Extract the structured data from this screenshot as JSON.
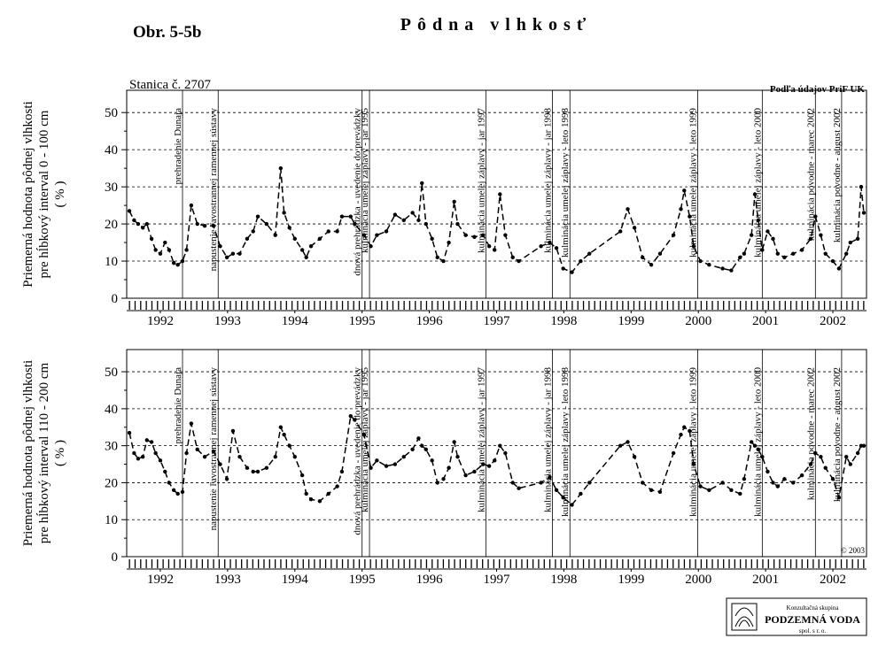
{
  "title": "Obr. 5-5b",
  "heading": "Pôdna vlhkosť",
  "station": "Stanica č. 2707",
  "source": "Podľa údajov PriF UK",
  "copyright": "© 2003",
  "logo": {
    "line1": "Konzultačná skupina",
    "line2": "PODZEMNÁ VODA",
    "line3": "spol. s r. o."
  },
  "chart_data": [
    {
      "type": "line",
      "y_label": [
        "Priemerná hodnota pôdnej vlhkosti",
        "pre hĺbkový interval 0 - 100 cm",
        "( % )"
      ],
      "xlim": [
        1992,
        2003
      ],
      "ylim": [
        0,
        56
      ],
      "yticks": [
        0,
        10,
        20,
        30,
        40,
        50
      ],
      "grid": true,
      "color": "#000000",
      "xticks": [
        {
          "value": 1992.5,
          "label": "1992"
        },
        {
          "value": 1993.5,
          "label": "1993"
        },
        {
          "value": 1994.5,
          "label": "1994"
        },
        {
          "value": 1995.5,
          "label": "1995"
        },
        {
          "value": 1996.5,
          "label": "1996"
        },
        {
          "value": 1997.5,
          "label": "1997"
        },
        {
          "value": 1998.5,
          "label": "1998"
        },
        {
          "value": 1999.5,
          "label": "1999"
        },
        {
          "value": 2000.5,
          "label": "2000"
        },
        {
          "value": 2001.5,
          "label": "2001"
        },
        {
          "value": 2002.5,
          "label": "2002"
        }
      ],
      "events": [
        {
          "x": 1992.83,
          "label": "prehradenie Dunaja"
        },
        {
          "x": 1993.36,
          "label": "napustenie ľavostrannej ramennej sústavy"
        },
        {
          "x": 1995.5,
          "label": "dnová prehrádzka - uvedenie do prevádzky"
        },
        {
          "x": 1995.61,
          "label": "kulminácia umelej záplavy - jar 1995"
        },
        {
          "x": 1997.34,
          "label": "kulminácia umelej záplavy - jar 1997"
        },
        {
          "x": 1998.33,
          "label": "kulminácia umelej záplavy - jar 1998"
        },
        {
          "x": 1998.59,
          "label": "kulminácia umelej záplavy - leto 1998"
        },
        {
          "x": 2000.49,
          "label": "kulminácia umelej záplavy - leto 1999"
        },
        {
          "x": 2001.45,
          "label": "kulminácia umelej záplavy - leto 2000"
        },
        {
          "x": 2002.24,
          "label": "kulminácia povodne - marec 2002"
        },
        {
          "x": 2002.63,
          "label": "kulminácia povodne - august 2002"
        }
      ],
      "x": [
        1992.04,
        1992.11,
        1992.17,
        1992.24,
        1992.3,
        1992.37,
        1992.43,
        1992.5,
        1992.57,
        1992.63,
        1992.7,
        1992.76,
        1992.83,
        1992.89,
        1992.96,
        1993.05,
        1993.16,
        1993.29,
        1993.39,
        1993.49,
        1993.58,
        1993.68,
        1993.79,
        1993.88,
        1993.95,
        1994.08,
        1994.21,
        1994.29,
        1994.34,
        1994.42,
        1994.5,
        1994.61,
        1994.67,
        1994.74,
        1994.87,
        1995.0,
        1995.13,
        1995.2,
        1995.33,
        1995.39,
        1995.53,
        1995.63,
        1995.72,
        1995.86,
        1995.99,
        1996.12,
        1996.25,
        1996.34,
        1996.39,
        1996.45,
        1996.54,
        1996.62,
        1996.71,
        1996.79,
        1996.87,
        1996.92,
        1997.04,
        1997.17,
        1997.3,
        1997.39,
        1997.47,
        1997.55,
        1997.63,
        1997.74,
        1997.83,
        1998.16,
        1998.29,
        1998.39,
        1998.49,
        1998.62,
        1998.75,
        1998.88,
        1999.34,
        1999.45,
        1999.55,
        1999.67,
        1999.8,
        1999.93,
        2000.13,
        2000.24,
        2000.29,
        2000.37,
        2000.43,
        2000.53,
        2000.66,
        2000.86,
        2000.99,
        2001.12,
        2001.18,
        2001.29,
        2001.34,
        2001.39,
        2001.45,
        2001.53,
        2001.61,
        2001.68,
        2001.78,
        2001.91,
        2002.04,
        2002.17,
        2002.24,
        2002.32,
        2002.39,
        2002.5,
        2002.59,
        2002.7,
        2002.76,
        2002.87,
        2002.92,
        2002.96
      ],
      "values": [
        23.5,
        21,
        20,
        19,
        20,
        16,
        13,
        12,
        15,
        13,
        9.5,
        9,
        10,
        13,
        25,
        20,
        19.5,
        19.5,
        14,
        11,
        12,
        12,
        16,
        18,
        22,
        20,
        17,
        35,
        23,
        19,
        16,
        13,
        11,
        14,
        16,
        18,
        18,
        22,
        22,
        20,
        17,
        14,
        17,
        18,
        22.5,
        21,
        23,
        21,
        31,
        20,
        16,
        11,
        10,
        15,
        26,
        20,
        17,
        16.5,
        17,
        14,
        13,
        28,
        17,
        11,
        10,
        14,
        15,
        13.5,
        8,
        7,
        10,
        12,
        18,
        24,
        19,
        11,
        9,
        12,
        17,
        24,
        29,
        22,
        14,
        10,
        9,
        8,
        7.5,
        11,
        12,
        17,
        28,
        21,
        13,
        18,
        16,
        12,
        11,
        12,
        13,
        16,
        22,
        17,
        12,
        10,
        8,
        12,
        15,
        16,
        30,
        23
      ]
    },
    {
      "type": "line",
      "y_label": [
        "Priemerná hodnota pôdnej vlhkosti",
        "pre hĺbkový interval 110 - 200 cm",
        "( % )"
      ],
      "xlim": [
        1992,
        2003
      ],
      "ylim": [
        0,
        56
      ],
      "yticks": [
        0,
        10,
        20,
        30,
        40,
        50
      ],
      "grid": true,
      "color": "#000000",
      "xticks": [
        {
          "value": 1992.5,
          "label": "1992"
        },
        {
          "value": 1993.5,
          "label": "1993"
        },
        {
          "value": 1994.5,
          "label": "1994"
        },
        {
          "value": 1995.5,
          "label": "1995"
        },
        {
          "value": 1996.5,
          "label": "1996"
        },
        {
          "value": 1997.5,
          "label": "1997"
        },
        {
          "value": 1998.5,
          "label": "1998"
        },
        {
          "value": 1999.5,
          "label": "1999"
        },
        {
          "value": 2000.5,
          "label": "2000"
        },
        {
          "value": 2001.5,
          "label": "2001"
        },
        {
          "value": 2002.5,
          "label": "2002"
        }
      ],
      "events": [
        {
          "x": 1992.83,
          "label": "prehradenie Dunaja"
        },
        {
          "x": 1993.36,
          "label": "napustenie ľavostrannej ramennej sústavy"
        },
        {
          "x": 1995.5,
          "label": "dnová prehrádzka - uvedenie do prevádzky"
        },
        {
          "x": 1995.61,
          "label": "kulminácia umelej záplavy - jar 1995"
        },
        {
          "x": 1997.34,
          "label": "kulminácia umelej záplavy - jar 1997"
        },
        {
          "x": 1998.33,
          "label": "kulminácia umelej záplavy - jar 1998"
        },
        {
          "x": 1998.59,
          "label": "kulminácia umelej záplavy - leto 1998"
        },
        {
          "x": 2000.49,
          "label": "kulminácia umelej záplavy - leto 1999"
        },
        {
          "x": 2001.45,
          "label": "kulminácia umelej záplavy - leto 2000"
        },
        {
          "x": 2002.24,
          "label": "kulminácia povodne - marec 2002"
        },
        {
          "x": 2002.63,
          "label": "kulminácia povodne - august 2002"
        }
      ],
      "x": [
        1992.04,
        1992.11,
        1992.17,
        1992.24,
        1992.3,
        1992.37,
        1992.43,
        1992.5,
        1992.57,
        1992.63,
        1992.7,
        1992.76,
        1992.83,
        1992.89,
        1992.96,
        1993.05,
        1993.16,
        1993.29,
        1993.39,
        1993.49,
        1993.58,
        1993.68,
        1993.79,
        1993.88,
        1993.95,
        1994.08,
        1994.21,
        1994.29,
        1994.34,
        1994.42,
        1994.5,
        1994.61,
        1994.67,
        1994.74,
        1994.87,
        1995.0,
        1995.13,
        1995.2,
        1995.33,
        1995.39,
        1995.53,
        1995.63,
        1995.72,
        1995.86,
        1995.99,
        1996.12,
        1996.25,
        1996.34,
        1996.39,
        1996.45,
        1996.54,
        1996.62,
        1996.71,
        1996.79,
        1996.87,
        1996.92,
        1997.04,
        1997.17,
        1997.3,
        1997.39,
        1997.47,
        1997.55,
        1997.63,
        1997.74,
        1997.83,
        1998.16,
        1998.29,
        1998.39,
        1998.49,
        1998.62,
        1998.75,
        1998.88,
        1999.34,
        1999.45,
        1999.55,
        1999.67,
        1999.8,
        1999.93,
        2000.13,
        2000.24,
        2000.29,
        2000.37,
        2000.43,
        2000.53,
        2000.66,
        2000.86,
        2000.99,
        2001.12,
        2001.18,
        2001.29,
        2001.34,
        2001.39,
        2001.45,
        2001.53,
        2001.61,
        2001.68,
        2001.78,
        2001.91,
        2002.04,
        2002.17,
        2002.24,
        2002.32,
        2002.39,
        2002.5,
        2002.59,
        2002.7,
        2002.76,
        2002.87,
        2002.92,
        2002.96
      ],
      "values": [
        33.5,
        28,
        26.5,
        27,
        31.5,
        31,
        28,
        26,
        23,
        20,
        18,
        17,
        17.5,
        28,
        36,
        29,
        27,
        28.5,
        25,
        21,
        34,
        27,
        24,
        23,
        23,
        24,
        27,
        35,
        33,
        30,
        27,
        22,
        17,
        15.5,
        15,
        17,
        19,
        23,
        38,
        37,
        33,
        24,
        26,
        24.5,
        25,
        27,
        29,
        32,
        30,
        29,
        26,
        20,
        21,
        24,
        31,
        27,
        22,
        23,
        25,
        24.5,
        26,
        30,
        28,
        20,
        18.5,
        20,
        21.5,
        18,
        16,
        14,
        17,
        20,
        30,
        31,
        27,
        20,
        18,
        17.5,
        28,
        33,
        35,
        34,
        25,
        19,
        18,
        20,
        18,
        17,
        21,
        31,
        30,
        29,
        27,
        23,
        20,
        19,
        21,
        20,
        22,
        25,
        28,
        27,
        24,
        21,
        16,
        27,
        25,
        28,
        30,
        30
      ]
    }
  ]
}
